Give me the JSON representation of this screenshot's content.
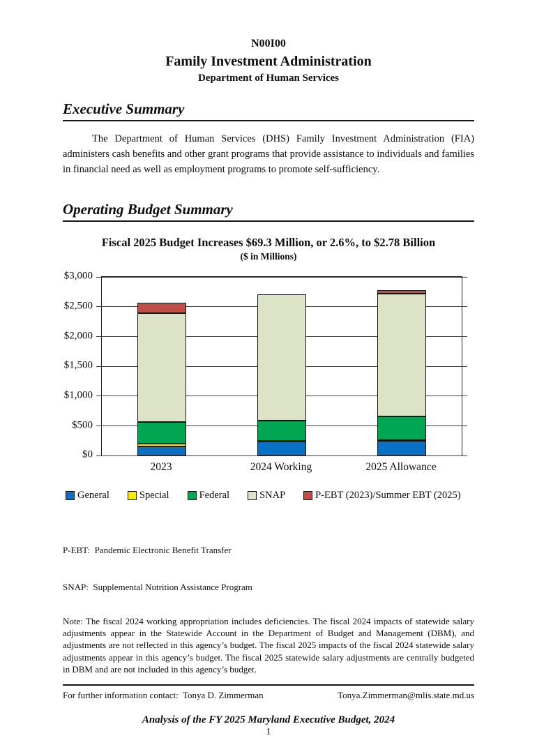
{
  "header": {
    "agency_code": "N00I00",
    "agency_name": "Family Investment Administration",
    "department": "Department of Human Services"
  },
  "sections": {
    "executive_summary_heading": "Executive Summary",
    "executive_summary_body": "The Department of Human Services (DHS) Family Investment Administration (FIA) administers cash benefits and other grant programs that provide assistance to individuals and families in financial need as well as employment programs to promote self-sufficiency.",
    "operating_budget_heading": "Operating Budget Summary"
  },
  "chart_data": {
    "type": "bar",
    "stacked": true,
    "title": "Fiscal 2025 Budget Increases $69.3 Million, or 2.6%, to $2.78 Billion",
    "subtitle": "($ in Millions)",
    "categories": [
      "2023",
      "2024 Working",
      "2025 Allowance"
    ],
    "series": [
      {
        "name": "General",
        "color": "#0a70c4",
        "values": [
          150,
          235,
          250
        ]
      },
      {
        "name": "Special",
        "color": "#ffec00",
        "values": [
          55,
          10,
          10
        ]
      },
      {
        "name": "Federal",
        "color": "#00a651",
        "values": [
          365,
          345,
          400
        ]
      },
      {
        "name": "SNAP",
        "color": "#dce3c6",
        "values": [
          1825,
          2120,
          2058
        ]
      },
      {
        "name": "P-EBT (2023)/Summer EBT (2025)",
        "color": "#bf4e47",
        "values": [
          180,
          0,
          61
        ]
      }
    ],
    "totals": [
      2575,
      2710,
      2779
    ],
    "ylim": [
      0,
      3000
    ],
    "ytick_step": 500,
    "ytick_labels": [
      "$0",
      "$500",
      "$1,000",
      "$1,500",
      "$2,000",
      "$2,500",
      "$3,000"
    ],
    "grid": true,
    "legend_position": "bottom"
  },
  "footnotes": {
    "pebt": "P-EBT:  Pandemic Electronic Benefit Transfer",
    "snap": "SNAP:  Supplemental Nutrition Assistance Program",
    "note": "Note:  The fiscal 2024 working appropriation includes deficiencies. The fiscal 2024 impacts of statewide salary adjustments appear in the Statewide Account in the Department of Budget and Management (DBM), and adjustments are not reflected in this agency’s budget. The fiscal 2025 impacts of the fiscal 2024 statewide salary adjustments appear in this agency’s budget. The fiscal 2025 statewide salary adjustments are centrally budgeted in DBM and are not included in this agency’s budget."
  },
  "footer": {
    "contact_label": "For further information contact:  Tonya D. Zimmerman",
    "contact_email": "Tonya.Zimmerman@mlis.state.md.us",
    "publication": "Analysis of the FY 2025 Maryland Executive Budget, 2024",
    "page_number": "1"
  }
}
